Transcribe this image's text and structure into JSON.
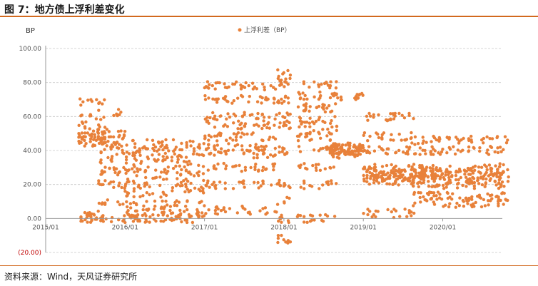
{
  "figure": {
    "title": "图 7：地方债上浮利差变化",
    "source": "资料来源：Wind，天风证券研究所"
  },
  "chart_data": {
    "type": "scatter",
    "title": "",
    "unit_label": "BP",
    "ylim": [
      -20,
      100
    ],
    "y_ticks": [
      {
        "value": 100,
        "label": "100.00"
      },
      {
        "value": 80,
        "label": "80.00"
      },
      {
        "value": 60,
        "label": "60.00"
      },
      {
        "value": 40,
        "label": "40.00"
      },
      {
        "value": 20,
        "label": "20.00"
      },
      {
        "value": 0,
        "label": "0.00"
      },
      {
        "value": -20,
        "label": "(20.00)"
      }
    ],
    "x_range": [
      "2015-01",
      "2020-10"
    ],
    "x_ticks": [
      "2015/01",
      "2016/01",
      "2017/01",
      "2018/01",
      "2019/01",
      "2020/01"
    ],
    "grid": "horizontal dashed",
    "legend": {
      "position": "top-center",
      "label": "上浮利差（BP）"
    },
    "color": "#e8813a",
    "series": [
      {
        "name": "上浮利差（BP）",
        "clusters": [
          {
            "from": "2015-06",
            "to": "2015-09",
            "values": [
              0,
              1,
              2,
              45,
              48,
              50,
              52,
              55,
              60,
              68
            ]
          },
          {
            "from": "2015-09",
            "to": "2015-12",
            "values": [
              0,
              10,
              20,
              28,
              35,
              40,
              45,
              47,
              50,
              63
            ]
          },
          {
            "from": "2016-01",
            "to": "2016-12",
            "values": [
              0,
              3,
              8,
              15,
              20,
              25,
              30,
              35,
              40,
              44
            ]
          },
          {
            "from": "2017-01",
            "to": "2017-11",
            "values": [
              5,
              20,
              30,
              38,
              42,
              48,
              55,
              60,
              70,
              78
            ]
          },
          {
            "from": "2017-12",
            "to": "2018-01",
            "values": [
              -12,
              0,
              10,
              20,
              40,
              55,
              60,
              70,
              80,
              86
            ]
          },
          {
            "from": "2018-03",
            "to": "2018-08",
            "values": [
              0,
              20,
              30,
              40,
              48,
              52,
              58,
              65,
              72,
              78
            ]
          },
          {
            "from": "2018-08",
            "to": "2018-12",
            "values": [
              38,
              40,
              41,
              42,
              72
            ]
          },
          {
            "from": "2019-01",
            "to": "2019-08",
            "values": [
              3,
              22,
              24,
              25,
              26,
              30,
              40,
              48,
              60
            ]
          },
          {
            "from": "2019-08",
            "to": "2020-10",
            "values": [
              9,
              13,
              20,
              23,
              25,
              26,
              28,
              30,
              40,
              46
            ]
          }
        ]
      }
    ]
  }
}
